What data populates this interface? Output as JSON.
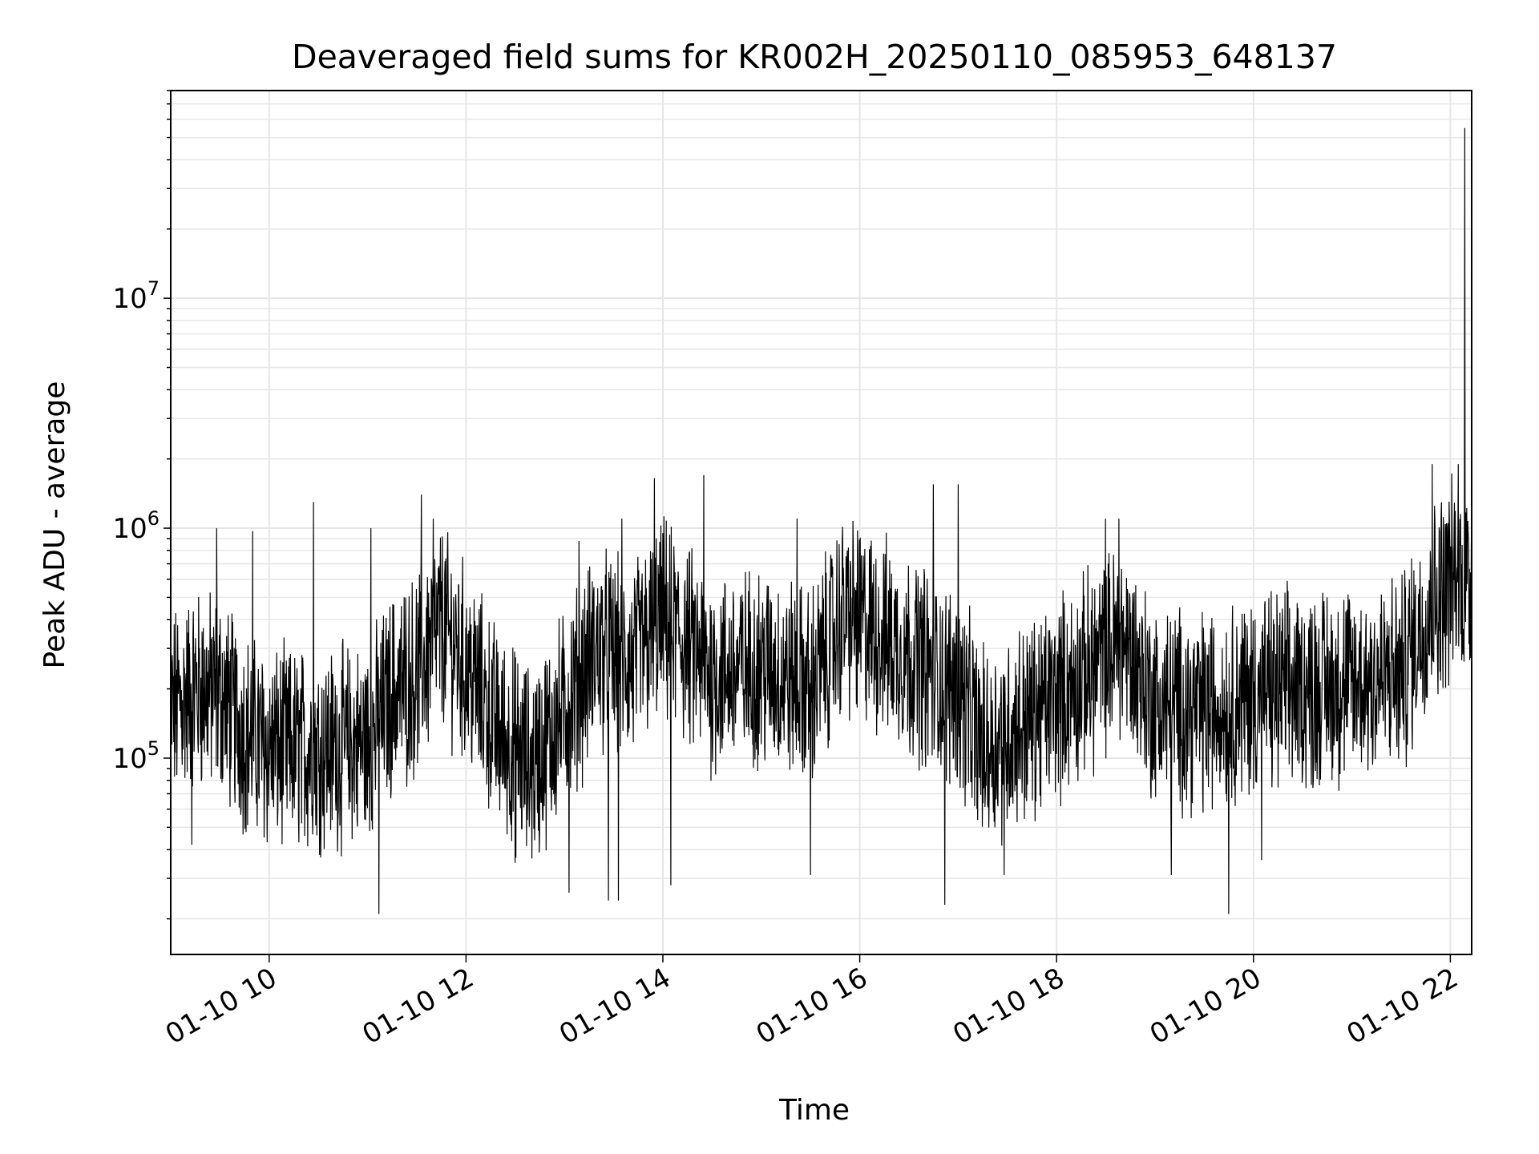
{
  "chart_data": {
    "type": "line",
    "title": "Deaveraged field sums for KR002H_20250110_085953_648137",
    "xlabel": "Time",
    "ylabel": "Peak ADU - average",
    "yscale": "log",
    "xlim": [
      "01-10 09:00",
      "01-10 22:13"
    ],
    "ylim": [
      14000,
      80000000
    ],
    "grid": true,
    "line_color": "#000000",
    "grid_color": "#e6e6e6",
    "x_ticks": [
      {
        "value": "01-10 10:00",
        "label": "01-10 10"
      },
      {
        "value": "01-10 12:00",
        "label": "01-10 12"
      },
      {
        "value": "01-10 14:00",
        "label": "01-10 14"
      },
      {
        "value": "01-10 16:00",
        "label": "01-10 16"
      },
      {
        "value": "01-10 18:00",
        "label": "01-10 18"
      },
      {
        "value": "01-10 20:00",
        "label": "01-10 20"
      },
      {
        "value": "01-10 22:00",
        "label": "01-10 22"
      }
    ],
    "y_ticks": [
      {
        "value": 100000,
        "base": "10",
        "exp": "5"
      },
      {
        "value": 1000000,
        "base": "10",
        "exp": "6"
      },
      {
        "value": 10000000,
        "base": "10",
        "exp": "7"
      }
    ],
    "series": [
      {
        "baseline": [
          {
            "t": "01-10 09:00",
            "y": 160000
          },
          {
            "t": "01-10 09:15",
            "y": 200000
          },
          {
            "t": "01-10 09:30",
            "y": 190000
          },
          {
            "t": "01-10 09:45",
            "y": 130000
          },
          {
            "t": "01-10 10:00",
            "y": 110000
          },
          {
            "t": "01-10 10:30",
            "y": 110000
          },
          {
            "t": "01-10 11:00",
            "y": 115000
          },
          {
            "t": "01-10 11:15",
            "y": 190000
          },
          {
            "t": "01-10 11:30",
            "y": 230000
          },
          {
            "t": "01-10 11:45",
            "y": 380000
          },
          {
            "t": "01-10 12:00",
            "y": 250000
          },
          {
            "t": "01-10 12:20",
            "y": 130000
          },
          {
            "t": "01-10 12:40",
            "y": 90000
          },
          {
            "t": "01-10 13:00",
            "y": 160000
          },
          {
            "t": "01-10 13:20",
            "y": 300000
          },
          {
            "t": "01-10 13:40",
            "y": 250000
          },
          {
            "t": "01-10 14:00",
            "y": 400000
          },
          {
            "t": "01-10 14:30",
            "y": 230000
          },
          {
            "t": "01-10 15:00",
            "y": 250000
          },
          {
            "t": "01-10 15:30",
            "y": 200000
          },
          {
            "t": "01-10 15:50",
            "y": 420000
          },
          {
            "t": "01-10 16:10",
            "y": 350000
          },
          {
            "t": "01-10 16:30",
            "y": 280000
          },
          {
            "t": "01-10 17:00",
            "y": 200000
          },
          {
            "t": "01-10 17:15",
            "y": 110000
          },
          {
            "t": "01-10 17:45",
            "y": 150000
          },
          {
            "t": "01-10 18:15",
            "y": 220000
          },
          {
            "t": "01-10 18:40",
            "y": 330000
          },
          {
            "t": "01-10 19:00",
            "y": 170000
          },
          {
            "t": "01-10 19:30",
            "y": 160000
          },
          {
            "t": "01-10 20:00",
            "y": 190000
          },
          {
            "t": "01-10 20:30",
            "y": 200000
          },
          {
            "t": "01-10 21:00",
            "y": 210000
          },
          {
            "t": "01-10 21:30",
            "y": 230000
          },
          {
            "t": "01-10 21:45",
            "y": 420000
          },
          {
            "t": "01-10 22:00",
            "y": 600000
          },
          {
            "t": "01-10 22:13",
            "y": 600000
          }
        ],
        "peaks": [
          {
            "t": "01-10 09:28",
            "y": 1000000
          },
          {
            "t": "01-10 09:50",
            "y": 970000
          },
          {
            "t": "01-10 10:27",
            "y": 1300000
          },
          {
            "t": "01-10 11:02",
            "y": 1000000
          },
          {
            "t": "01-10 11:33",
            "y": 1400000
          },
          {
            "t": "01-10 11:40",
            "y": 1100000
          },
          {
            "t": "01-10 13:09",
            "y": 880000
          },
          {
            "t": "01-10 13:35",
            "y": 1100000
          },
          {
            "t": "01-10 13:55",
            "y": 1650000
          },
          {
            "t": "01-10 14:25",
            "y": 1700000
          },
          {
            "t": "01-10 15:22",
            "y": 1100000
          },
          {
            "t": "01-10 16:45",
            "y": 1550000
          },
          {
            "t": "01-10 17:00",
            "y": 1550000
          },
          {
            "t": "01-10 18:30",
            "y": 1100000
          },
          {
            "t": "01-10 18:38",
            "y": 1100000
          },
          {
            "t": "01-10 21:49",
            "y": 1900000
          },
          {
            "t": "01-10 22:05",
            "y": 1900000
          },
          {
            "t": "01-10 22:09",
            "y": 55000000
          }
        ],
        "troughs": [
          {
            "t": "01-10 09:13",
            "y": 42000
          },
          {
            "t": "01-10 11:07",
            "y": 21000
          },
          {
            "t": "01-10 12:30",
            "y": 35000
          },
          {
            "t": "01-10 13:03",
            "y": 26000
          },
          {
            "t": "01-10 13:27",
            "y": 24000
          },
          {
            "t": "01-10 13:33",
            "y": 24000
          },
          {
            "t": "01-10 14:05",
            "y": 28000
          },
          {
            "t": "01-10 15:30",
            "y": 31000
          },
          {
            "t": "01-10 16:52",
            "y": 23000
          },
          {
            "t": "01-10 17:28",
            "y": 31000
          },
          {
            "t": "01-10 19:10",
            "y": 31000
          },
          {
            "t": "01-10 19:45",
            "y": 21000
          },
          {
            "t": "01-10 20:05",
            "y": 36000
          }
        ]
      }
    ]
  }
}
